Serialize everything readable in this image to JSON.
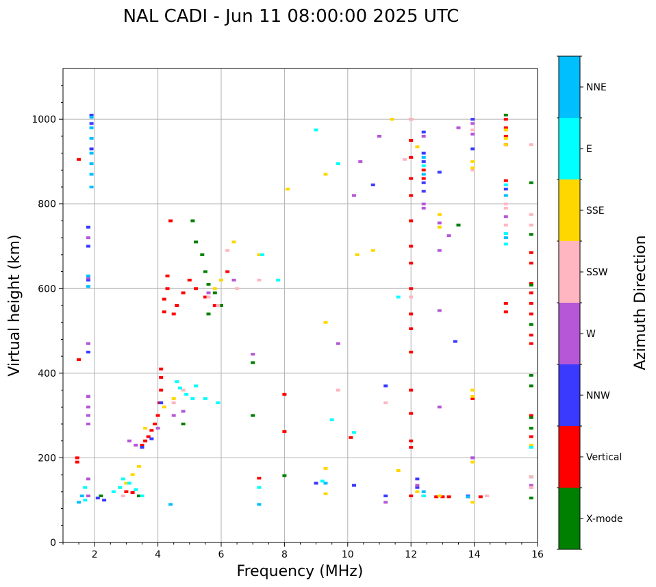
{
  "chart_data": {
    "type": "scatter",
    "title": "NAL CADI - Jun 11 08:00:00 2025 UTC",
    "xlabel": "Frequency (MHz)",
    "ylabel": "Virtual height (km)",
    "xlim": [
      1,
      16
    ],
    "ylim": [
      0,
      1120
    ],
    "xticks": [
      2,
      4,
      6,
      8,
      10,
      12,
      14,
      16
    ],
    "yticks": [
      0,
      200,
      400,
      600,
      800,
      1000
    ],
    "grid": true,
    "colorbar": {
      "label": "Azimuth Direction",
      "categories": [
        {
          "name": "X-mode",
          "color": "#008000"
        },
        {
          "name": "Vertical",
          "color": "#ff0000"
        },
        {
          "name": "NNW",
          "color": "#3a3aff"
        },
        {
          "name": "W",
          "color": "#b557d6"
        },
        {
          "name": "SSW",
          "color": "#ffb6c1"
        },
        {
          "name": "SSE",
          "color": "#ffd700"
        },
        {
          "name": "E",
          "color": "#00ffff"
        },
        {
          "name": "NNE",
          "color": "#00bfff"
        }
      ]
    },
    "series": [
      {
        "name": "Vertical",
        "color": "#ff0000",
        "points": [
          [
            1.5,
            905
          ],
          [
            1.5,
            432
          ],
          [
            1.45,
            200
          ],
          [
            1.45,
            190
          ],
          [
            3.0,
            120
          ],
          [
            3.2,
            118
          ],
          [
            3.5,
            230
          ],
          [
            3.6,
            240
          ],
          [
            3.7,
            250
          ],
          [
            3.8,
            265
          ],
          [
            3.9,
            280
          ],
          [
            4.0,
            300
          ],
          [
            4.05,
            330
          ],
          [
            4.1,
            360
          ],
          [
            4.1,
            390
          ],
          [
            4.1,
            410
          ],
          [
            4.2,
            545
          ],
          [
            4.2,
            575
          ],
          [
            4.3,
            600
          ],
          [
            4.3,
            630
          ],
          [
            4.4,
            760
          ],
          [
            4.5,
            540
          ],
          [
            4.6,
            560
          ],
          [
            4.8,
            590
          ],
          [
            5.0,
            620
          ],
          [
            5.2,
            600
          ],
          [
            5.5,
            580
          ],
          [
            5.8,
            560
          ],
          [
            6.2,
            640
          ],
          [
            7.2,
            152
          ],
          [
            8.0,
            350
          ],
          [
            8.0,
            262
          ],
          [
            10.1,
            248
          ],
          [
            12.0,
            1000
          ],
          [
            12.0,
            950
          ],
          [
            12.0,
            910
          ],
          [
            12.0,
            860
          ],
          [
            12.0,
            820
          ],
          [
            12.0,
            760
          ],
          [
            12.0,
            700
          ],
          [
            12.0,
            660
          ],
          [
            12.0,
            600
          ],
          [
            12.0,
            540
          ],
          [
            12.0,
            505
          ],
          [
            12.0,
            450
          ],
          [
            12.0,
            360
          ],
          [
            12.0,
            305
          ],
          [
            12.0,
            240
          ],
          [
            12.0,
            225
          ],
          [
            12.0,
            110
          ],
          [
            12.4,
            110
          ],
          [
            12.4,
            860
          ],
          [
            12.4,
            880
          ],
          [
            12.8,
            108
          ],
          [
            13.0,
            108
          ],
          [
            13.2,
            108
          ],
          [
            13.8,
            108
          ],
          [
            14.2,
            108
          ],
          [
            13.95,
            340
          ],
          [
            15.0,
            1000
          ],
          [
            15.0,
            980
          ],
          [
            15.0,
            960
          ],
          [
            15.0,
            940
          ],
          [
            15.0,
            855
          ],
          [
            15.0,
            565
          ],
          [
            15.0,
            545
          ],
          [
            15.8,
            685
          ],
          [
            15.8,
            660
          ],
          [
            15.8,
            612
          ],
          [
            15.8,
            590
          ],
          [
            15.8,
            565
          ],
          [
            15.8,
            540
          ],
          [
            15.8,
            490
          ],
          [
            15.8,
            470
          ],
          [
            15.8,
            300
          ],
          [
            15.8,
            250
          ],
          [
            15.8,
            225
          ]
        ]
      },
      {
        "name": "X-mode",
        "color": "#008000",
        "points": [
          [
            2.2,
            110
          ],
          [
            3.4,
            110
          ],
          [
            4.8,
            280
          ],
          [
            5.1,
            760
          ],
          [
            5.2,
            710
          ],
          [
            5.4,
            680
          ],
          [
            5.5,
            640
          ],
          [
            5.6,
            610
          ],
          [
            5.8,
            590
          ],
          [
            6.0,
            560
          ],
          [
            5.6,
            540
          ],
          [
            7.0,
            300
          ],
          [
            7.0,
            425
          ],
          [
            8.0,
            158
          ],
          [
            13.5,
            750
          ],
          [
            15.0,
            1010
          ],
          [
            15.8,
            850
          ],
          [
            15.8,
            728
          ],
          [
            15.8,
            608
          ],
          [
            15.8,
            515
          ],
          [
            15.8,
            395
          ],
          [
            15.8,
            370
          ],
          [
            15.8,
            295
          ],
          [
            15.8,
            270
          ],
          [
            15.8,
            155
          ],
          [
            15.8,
            105
          ]
        ]
      },
      {
        "name": "NNW",
        "color": "#3a3aff",
        "points": [
          [
            1.9,
            1010
          ],
          [
            1.9,
            990
          ],
          [
            1.9,
            930
          ],
          [
            1.8,
            745
          ],
          [
            1.8,
            700
          ],
          [
            1.8,
            620
          ],
          [
            1.8,
            470
          ],
          [
            1.8,
            450
          ],
          [
            1.8,
            345
          ],
          [
            2.3,
            100
          ],
          [
            2.1,
            105
          ],
          [
            3.5,
            225
          ],
          [
            3.8,
            245
          ],
          [
            4.1,
            330
          ],
          [
            9.0,
            140
          ],
          [
            10.2,
            135
          ],
          [
            10.8,
            845
          ],
          [
            11.2,
            370
          ],
          [
            11.2,
            110
          ],
          [
            12.2,
            150
          ],
          [
            12.2,
            130
          ],
          [
            12.4,
            970
          ],
          [
            12.4,
            920
          ],
          [
            12.4,
            900
          ],
          [
            12.4,
            850
          ],
          [
            12.4,
            830
          ],
          [
            12.9,
            875
          ],
          [
            13.4,
            475
          ],
          [
            13.8,
            110
          ],
          [
            13.95,
            1000
          ],
          [
            13.95,
            930
          ],
          [
            13.95,
            200
          ],
          [
            15.0,
            835
          ]
        ]
      },
      {
        "name": "W",
        "color": "#b557d6",
        "points": [
          [
            1.8,
            345
          ],
          [
            1.8,
            320
          ],
          [
            1.8,
            300
          ],
          [
            1.8,
            280
          ],
          [
            1.8,
            470
          ],
          [
            1.8,
            720
          ],
          [
            1.8,
            625
          ],
          [
            1.8,
            150
          ],
          [
            1.8,
            110
          ],
          [
            3.1,
            240
          ],
          [
            3.3,
            230
          ],
          [
            4.0,
            270
          ],
          [
            4.5,
            300
          ],
          [
            4.8,
            310
          ],
          [
            5.6,
            590
          ],
          [
            5.9,
            560
          ],
          [
            6.4,
            620
          ],
          [
            7.0,
            445
          ],
          [
            9.7,
            470
          ],
          [
            10.4,
            900
          ],
          [
            10.2,
            820
          ],
          [
            11.0,
            960
          ],
          [
            11.2,
            95
          ],
          [
            12.2,
            135
          ],
          [
            12.4,
            960
          ],
          [
            12.4,
            800
          ],
          [
            12.4,
            790
          ],
          [
            12.9,
            690
          ],
          [
            12.9,
            548
          ],
          [
            12.9,
            320
          ],
          [
            12.9,
            755
          ],
          [
            13.2,
            725
          ],
          [
            13.5,
            980
          ],
          [
            13.95,
            990
          ],
          [
            13.95,
            965
          ],
          [
            13.95,
            200
          ],
          [
            15.0,
            770
          ],
          [
            15.8,
            135
          ],
          [
            15.8,
            130
          ]
        ]
      },
      {
        "name": "SSW",
        "color": "#ffb6c1",
        "points": [
          [
            2.9,
            110
          ],
          [
            4.5,
            330
          ],
          [
            4.8,
            360
          ],
          [
            5.6,
            580
          ],
          [
            5.9,
            560
          ],
          [
            6.2,
            690
          ],
          [
            6.5,
            600
          ],
          [
            7.2,
            620
          ],
          [
            9.7,
            360
          ],
          [
            11.2,
            330
          ],
          [
            11.8,
            905
          ],
          [
            12.0,
            1000
          ],
          [
            12.0,
            580
          ],
          [
            13.95,
            975
          ],
          [
            13.95,
            880
          ],
          [
            14.4,
            110
          ],
          [
            15.0,
            800
          ],
          [
            15.0,
            790
          ],
          [
            15.0,
            750
          ],
          [
            15.8,
            940
          ],
          [
            15.8,
            775
          ],
          [
            15.8,
            750
          ],
          [
            15.8,
            155
          ],
          [
            15.8,
            130
          ]
        ]
      },
      {
        "name": "SSE",
        "color": "#ffd700",
        "points": [
          [
            2.8,
            130
          ],
          [
            3.0,
            140
          ],
          [
            3.2,
            160
          ],
          [
            3.4,
            180
          ],
          [
            3.6,
            270
          ],
          [
            4.2,
            320
          ],
          [
            4.5,
            340
          ],
          [
            5.8,
            600
          ],
          [
            6.0,
            620
          ],
          [
            6.4,
            710
          ],
          [
            7.2,
            680
          ],
          [
            8.1,
            835
          ],
          [
            9.3,
            870
          ],
          [
            9.3,
            520
          ],
          [
            9.3,
            175
          ],
          [
            9.3,
            115
          ],
          [
            10.3,
            680
          ],
          [
            10.8,
            690
          ],
          [
            11.4,
            1000
          ],
          [
            11.6,
            170
          ],
          [
            12.2,
            935
          ],
          [
            12.2,
            120
          ],
          [
            12.9,
            775
          ],
          [
            12.9,
            745
          ],
          [
            12.9,
            110
          ],
          [
            13.95,
            900
          ],
          [
            13.95,
            885
          ],
          [
            13.95,
            360
          ],
          [
            13.95,
            345
          ],
          [
            13.95,
            190
          ],
          [
            13.95,
            95
          ],
          [
            15.0,
            975
          ],
          [
            15.0,
            955
          ],
          [
            15.0,
            940
          ],
          [
            15.8,
            230
          ]
        ]
      },
      {
        "name": "E",
        "color": "#00ffff",
        "points": [
          [
            1.7,
            130
          ],
          [
            1.7,
            100
          ],
          [
            2.6,
            120
          ],
          [
            2.8,
            130
          ],
          [
            2.9,
            150
          ],
          [
            3.1,
            140
          ],
          [
            3.3,
            125
          ],
          [
            3.5,
            110
          ],
          [
            4.6,
            380
          ],
          [
            4.7,
            365
          ],
          [
            4.9,
            350
          ],
          [
            5.1,
            340
          ],
          [
            5.2,
            370
          ],
          [
            5.5,
            340
          ],
          [
            5.9,
            330
          ],
          [
            7.3,
            680
          ],
          [
            7.2,
            130
          ],
          [
            7.8,
            620
          ],
          [
            9.0,
            975
          ],
          [
            9.2,
            145
          ],
          [
            9.5,
            290
          ],
          [
            9.7,
            895
          ],
          [
            10.2,
            260
          ],
          [
            11.6,
            580
          ],
          [
            12.4,
            110
          ],
          [
            12.4,
            890
          ],
          [
            15.0,
            730
          ],
          [
            15.0,
            705
          ],
          [
            15.0,
            845
          ],
          [
            15.8,
            225
          ]
        ]
      },
      {
        "name": "NNE",
        "color": "#00bfff",
        "points": [
          [
            1.9,
            1005
          ],
          [
            1.9,
            980
          ],
          [
            1.9,
            955
          ],
          [
            1.9,
            920
          ],
          [
            1.9,
            895
          ],
          [
            1.9,
            870
          ],
          [
            1.9,
            840
          ],
          [
            1.8,
            630
          ],
          [
            1.8,
            605
          ],
          [
            1.6,
            110
          ],
          [
            1.5,
            95
          ],
          [
            4.4,
            90
          ],
          [
            7.2,
            90
          ],
          [
            9.3,
            140
          ],
          [
            12.4,
            120
          ],
          [
            12.4,
            910
          ],
          [
            12.4,
            870
          ],
          [
            13.8,
            108
          ],
          [
            15.0,
            720
          ],
          [
            15.0,
            820
          ]
        ]
      }
    ]
  }
}
